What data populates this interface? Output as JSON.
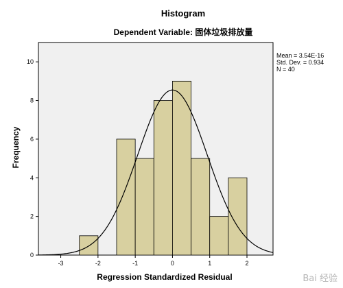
{
  "chart_data": {
    "type": "bar",
    "title": "Histogram",
    "subtitle": "Dependent Variable: 固体垃圾排放量",
    "xlabel": "Regression Standardized Residual",
    "ylabel": "Frequency",
    "bin_width": 0.5,
    "bins": [
      {
        "start": -2.5,
        "end": -2.0,
        "count": 1
      },
      {
        "start": -2.0,
        "end": -1.5,
        "count": 0
      },
      {
        "start": -1.5,
        "end": -1.0,
        "count": 6
      },
      {
        "start": -1.0,
        "end": -0.5,
        "count": 5
      },
      {
        "start": -0.5,
        "end": 0.0,
        "count": 8
      },
      {
        "start": 0.0,
        "end": 0.5,
        "count": 9
      },
      {
        "start": 0.5,
        "end": 1.0,
        "count": 5
      },
      {
        "start": 1.0,
        "end": 1.5,
        "count": 2
      },
      {
        "start": 1.5,
        "end": 2.0,
        "count": 4
      }
    ],
    "xlim": [
      -3.6,
      2.7
    ],
    "ylim": [
      0,
      11
    ],
    "xticks": [
      -3,
      -2,
      -1,
      0,
      1,
      2
    ],
    "yticks": [
      0,
      2,
      4,
      6,
      8,
      10
    ],
    "normal_curve": {
      "mean": 0.0,
      "sd": 0.934,
      "n": 40
    },
    "stats": [
      "Mean = 3.54E-16",
      "Std. Dev. = 0.934",
      "N = 40"
    ],
    "grid": false,
    "bar_color": "#d8d0a0",
    "plot_background": "#f0f0f0",
    "watermark": "Bai 经验"
  }
}
